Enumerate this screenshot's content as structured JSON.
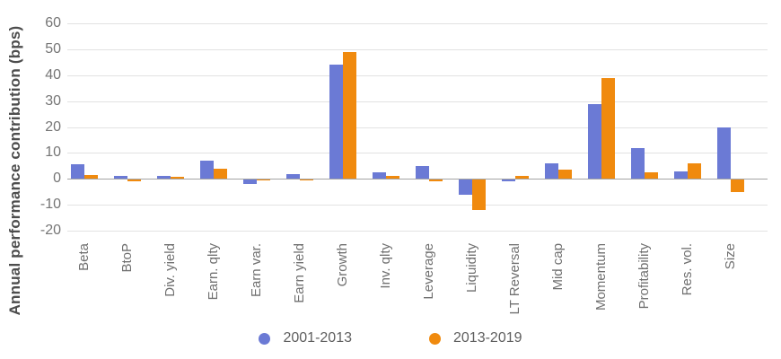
{
  "chart_data": {
    "type": "bar",
    "title": "",
    "xlabel": "",
    "ylabel": "Annual performance contribution (bps)",
    "ylim": [
      -20,
      60
    ],
    "yticks": [
      60,
      50,
      40,
      30,
      20,
      10,
      0,
      -10,
      -20
    ],
    "grid": true,
    "legend_position": "bottom",
    "categories": [
      "Beta",
      "BtoP",
      "Div. yield",
      "Earn. qlty",
      "Earn var.",
      "Earn yield",
      "Growth",
      "Inv. qlty",
      "Leverage",
      "Liquidity",
      "LT Reversal",
      "Mid cap",
      "Momentum",
      "Profitability",
      "Res. vol.",
      "Size"
    ],
    "series": [
      {
        "name": "2001-2013",
        "color": "#6b7ad5",
        "values": [
          5.5,
          1,
          1,
          7,
          -2,
          2,
          44,
          2.5,
          5,
          -6,
          -1,
          6,
          29,
          12,
          3,
          20
        ]
      },
      {
        "name": "2013-2019",
        "color": "#f08a0e",
        "values": [
          1.5,
          -1,
          0.7,
          4,
          -0.5,
          -0.5,
          49,
          1,
          -1,
          -12,
          1,
          3.5,
          39,
          2.5,
          6,
          -5
        ]
      }
    ]
  },
  "colors": {
    "gridline": "#e2e2e2",
    "zero_line": "#a3a3a3",
    "tick_text": "#757575",
    "category_text": "#707070",
    "axis_title_text": "#4d4d4d",
    "legend_text": "#5f5f5f",
    "background": "#ffffff"
  }
}
